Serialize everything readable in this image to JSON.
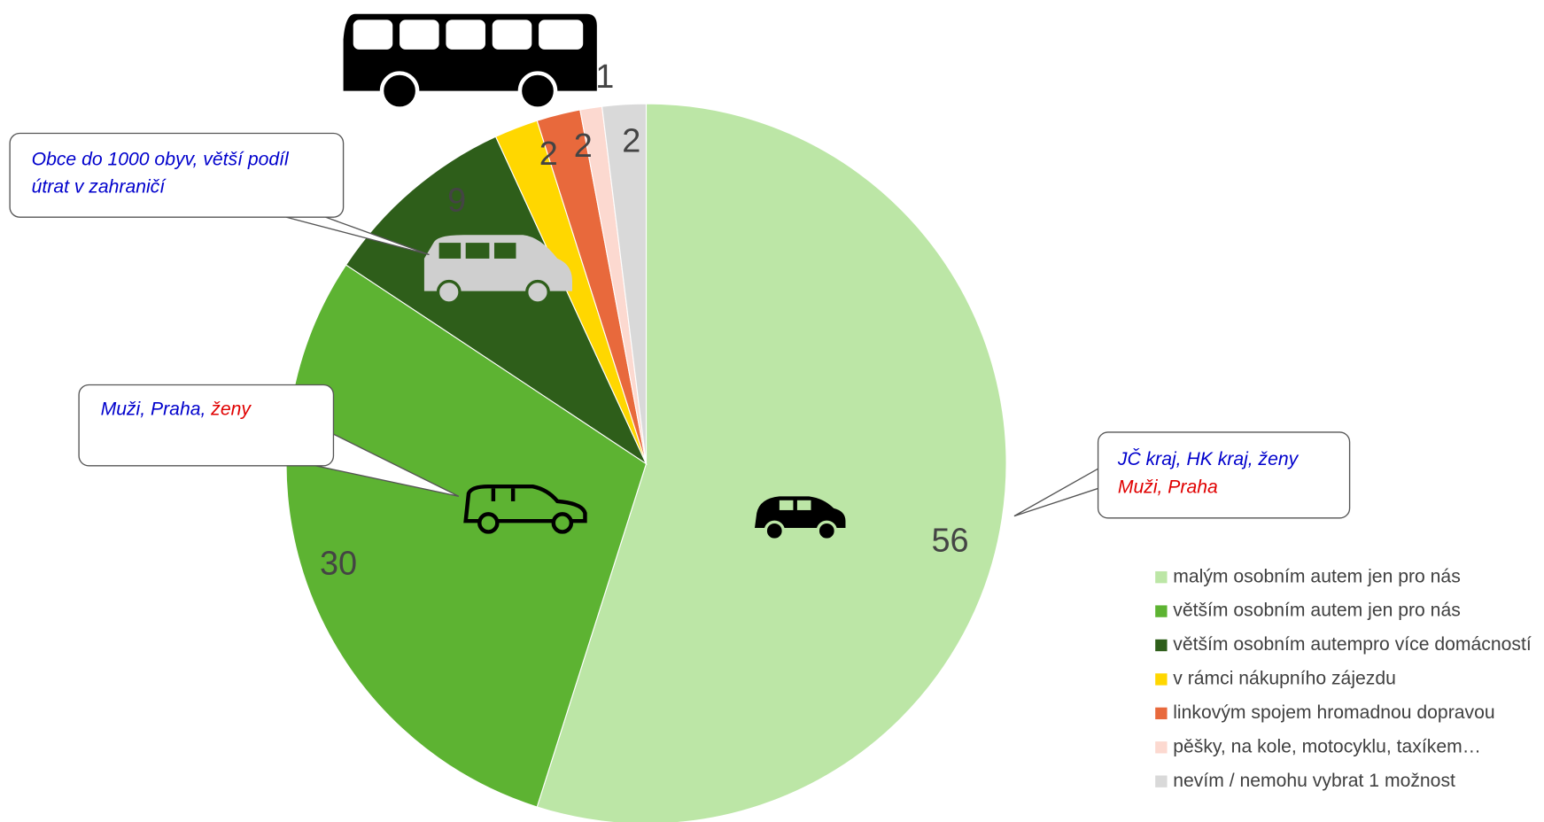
{
  "chart_data": {
    "type": "pie",
    "categories": [
      "malým osobním autem jen pro nás",
      "větším osobním autem jen pro nás",
      "větším osobním autempro více domácností",
      "v rámci nákupního zájezdu",
      "linkovým spojem hromadnou dopravou",
      "pěšky, na kole, motocyklu, taxíkem…",
      "nevím / nemohu vybrat 1 možnost"
    ],
    "values": [
      56,
      30,
      9,
      2,
      2,
      1,
      2
    ],
    "colors": [
      "#bce6a6",
      "#5db332",
      "#2e5e1a",
      "#ffd700",
      "#e8693c",
      "#fcd9d0",
      "#d9d9d9"
    ],
    "legend": "right",
    "annotations": [
      {
        "lines": [
          [
            {
              "text": "Obce do 1000 obyv, větší podíl",
              "color": "#0000cc"
            }
          ],
          [
            {
              "text": "útrat v zahraničí",
              "color": "#0000cc"
            }
          ]
        ]
      },
      {
        "lines": [
          [
            {
              "text": "Muži, Praha, ",
              "color": "#0000cc"
            },
            {
              "text": "ženy",
              "color": "#e00000"
            }
          ]
        ]
      },
      {
        "lines": [
          [
            {
              "text": "JČ kraj, HK kraj, ženy",
              "color": "#0000cc"
            }
          ],
          [
            {
              "text": "Muži, Praha",
              "color": "#e00000"
            }
          ]
        ]
      }
    ]
  }
}
